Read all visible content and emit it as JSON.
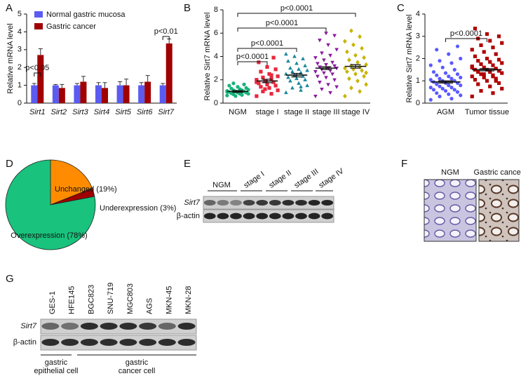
{
  "panel_letters": [
    "A",
    "B",
    "C",
    "D",
    "E",
    "F",
    "G"
  ],
  "chart_data": [
    {
      "type": "bar",
      "ylabel": "Relative mRNA level",
      "categories": [
        "Sirt1",
        "Sirt2",
        "Sirt3",
        "Sirt4",
        "Sirt5",
        "Sirt6",
        "Sirt7"
      ],
      "series": [
        {
          "name": "Normal gastric mucosa",
          "color": "#5b5bf2",
          "values": [
            1.0,
            1.0,
            1.0,
            1.0,
            1.0,
            1.0,
            1.0
          ],
          "errors": [
            0.1,
            0.05,
            0.1,
            0.15,
            0.2,
            0.15,
            0.1
          ]
        },
        {
          "name": "Gastric cancer",
          "color": "#a00000",
          "values": [
            2.7,
            0.85,
            1.2,
            0.85,
            1.0,
            1.2,
            3.35
          ],
          "errors": [
            0.35,
            0.2,
            0.3,
            0.3,
            0.35,
            0.35,
            0.25
          ]
        }
      ],
      "ylim": [
        0,
        5
      ],
      "yticks": [
        0,
        1,
        2,
        3,
        4,
        5
      ],
      "legend": "upper-left",
      "annotations": [
        "p<0.05",
        "p<0.01"
      ]
    },
    {
      "type": "dot",
      "ylabel": "Relative Sirt7 mRNA level",
      "categories": [
        "NGM",
        "stage I",
        "stage II",
        "stage III",
        "stage IV"
      ],
      "groups": [
        {
          "color": "#19b27a",
          "marker": "circle",
          "mean": 1.0,
          "sem": 0.08,
          "values": [
            0.65,
            0.7,
            0.75,
            0.8,
            0.8,
            0.85,
            0.9,
            0.9,
            0.95,
            1.0,
            1.0,
            1.05,
            1.1,
            1.1,
            1.15,
            1.2,
            1.25,
            1.3,
            1.4,
            1.5,
            1.6,
            0.6,
            0.95,
            1.0,
            1.7
          ]
        },
        {
          "color": "#e8283c",
          "marker": "square",
          "mean": 1.9,
          "sem": 0.15,
          "values": [
            0.6,
            0.8,
            1.0,
            1.1,
            1.3,
            1.4,
            1.5,
            1.6,
            1.7,
            1.8,
            1.9,
            2.0,
            2.1,
            2.2,
            2.3,
            2.5,
            2.7,
            2.9,
            3.1,
            3.5,
            3.9,
            1.2,
            1.8,
            2.4
          ]
        },
        {
          "color": "#19889a",
          "marker": "triangle",
          "mean": 2.4,
          "sem": 0.15,
          "values": [
            0.9,
            1.1,
            1.3,
            1.5,
            1.7,
            1.9,
            2.0,
            2.1,
            2.2,
            2.3,
            2.4,
            2.5,
            2.6,
            2.7,
            2.8,
            2.9,
            3.0,
            3.2,
            3.4,
            3.6,
            3.8,
            4.0,
            4.2,
            1.4
          ]
        },
        {
          "color": "#8b1b9d",
          "marker": "triangle-down",
          "mean": 3.0,
          "sem": 0.12,
          "values": [
            0.6,
            0.9,
            1.2,
            1.4,
            1.6,
            1.8,
            2.0,
            2.2,
            2.3,
            2.5,
            2.6,
            2.7,
            2.8,
            2.9,
            3.0,
            3.0,
            3.1,
            3.2,
            3.3,
            3.4,
            3.5,
            3.7,
            3.9,
            4.1,
            4.3,
            4.6,
            5.0,
            5.4,
            5.8,
            6.0
          ]
        },
        {
          "color": "#c8b400",
          "marker": "diamond",
          "mean": 3.15,
          "sem": 0.15,
          "values": [
            0.6,
            1.0,
            1.3,
            1.6,
            1.9,
            2.1,
            2.3,
            2.5,
            2.7,
            2.8,
            2.9,
            3.0,
            3.1,
            3.2,
            3.3,
            3.5,
            3.7,
            3.9,
            4.1,
            4.4,
            4.7,
            5.0,
            5.3,
            5.7,
            6.2,
            2.6
          ]
        }
      ],
      "ylim": [
        0,
        8
      ],
      "yticks": [
        0,
        2,
        4,
        6,
        8
      ],
      "annotations": [
        "p<0.0001",
        "p<0.0001",
        "p<0.0001",
        "p<0.0001"
      ]
    },
    {
      "type": "dot",
      "ylabel": "Relative Sirt7 mRNA level",
      "categories": [
        "AGM",
        "Tumor tissue"
      ],
      "groups": [
        {
          "color": "#5a5aff",
          "marker": "circle",
          "mean": 0.95,
          "sem": 0.05,
          "values": [
            0.15,
            0.2,
            0.3,
            0.35,
            0.4,
            0.45,
            0.5,
            0.55,
            0.6,
            0.6,
            0.65,
            0.7,
            0.7,
            0.75,
            0.8,
            0.8,
            0.85,
            0.9,
            0.9,
            0.95,
            1.0,
            1.0,
            1.05,
            1.1,
            1.1,
            1.15,
            1.2,
            1.25,
            1.3,
            1.35,
            1.4,
            1.5,
            1.6,
            1.7,
            1.8,
            1.9,
            2.0,
            2.2,
            2.4,
            2.55
          ]
        },
        {
          "color": "#b00000",
          "marker": "square",
          "mean": 1.5,
          "sem": 0.05,
          "values": [
            0.3,
            0.45,
            0.55,
            0.65,
            0.75,
            0.85,
            0.9,
            1.0,
            1.05,
            1.1,
            1.15,
            1.2,
            1.25,
            1.3,
            1.35,
            1.4,
            1.4,
            1.45,
            1.5,
            1.5,
            1.55,
            1.6,
            1.65,
            1.7,
            1.75,
            1.8,
            1.85,
            1.9,
            1.95,
            2.0,
            2.1,
            2.2,
            2.3,
            2.4,
            2.5,
            2.6,
            2.7,
            2.8,
            2.9,
            3.0,
            3.1,
            3.35,
            1.0,
            1.3,
            1.6,
            1.2
          ]
        }
      ],
      "ylim": [
        0,
        4
      ],
      "yticks": [
        0,
        1,
        2,
        3,
        4
      ],
      "annotations": [
        "p<0.0001"
      ]
    },
    {
      "type": "pie",
      "values": [
        19,
        3,
        78
      ],
      "value_labels": [
        "Unchanged (19%)",
        "Underexpression (3%)",
        "Overexpression (78%)"
      ],
      "colors": [
        "#ff8c00",
        "#a00000",
        "#19c27d"
      ]
    }
  ],
  "blot_e": {
    "lanes": [
      "NGM",
      "stage I",
      "stage II",
      "stage III",
      "stage IV"
    ],
    "rows": [
      "Sirt7",
      "β-actin"
    ]
  },
  "images_f": {
    "labels": [
      "NGM",
      "Gastric cancer"
    ]
  },
  "blot_g": {
    "lanes": [
      "GES-1",
      "HFE145",
      "BGC823",
      "SNU-719",
      "MGC803",
      "AGS",
      "MKN-45",
      "MKN-28"
    ],
    "rows": [
      "Sirt7",
      "β-actin"
    ],
    "groups": [
      [
        "gastric",
        "epithelial cell"
      ],
      [
        "gastric",
        "cancer cell"
      ]
    ]
  }
}
